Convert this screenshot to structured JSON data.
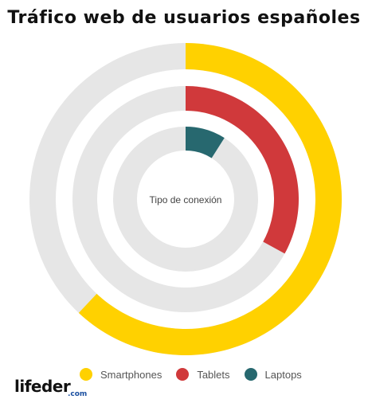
{
  "chart_data": {
    "type": "radial-bar",
    "title": "Tráfico web de usuarios españoles",
    "center_label": "Tipo de conexión",
    "series": [
      {
        "name": "Smartphones",
        "value": 62,
        "color": "#ffd100"
      },
      {
        "name": "Tablets",
        "value": 33,
        "color": "#d0393b"
      },
      {
        "name": "Laptops",
        "value": 9,
        "color": "#27686f"
      }
    ],
    "max": 100,
    "track_color": "#e6e6e6",
    "legend_position": "bottom"
  },
  "brand": {
    "logo_text": "lifeder",
    "logo_suffix": ".com"
  }
}
